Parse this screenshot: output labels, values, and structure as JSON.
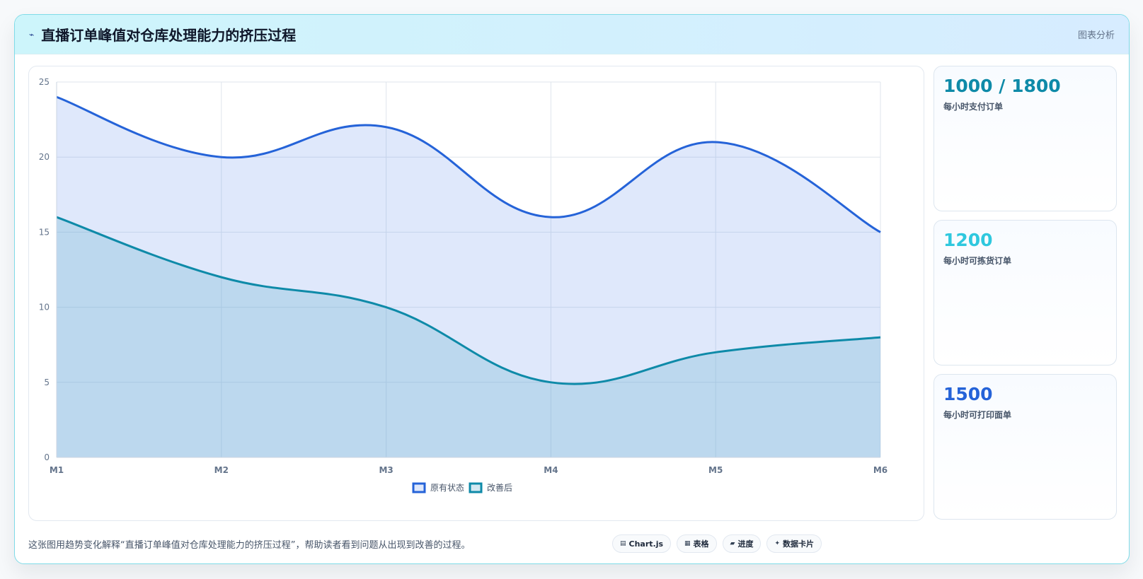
{
  "header": {
    "icon": "pulse-icon",
    "title": "直播订单峰值对仓库处理能力的挤压过程",
    "tag": "图表分析"
  },
  "chart_data": {
    "type": "area",
    "categories": [
      "M1",
      "M2",
      "M3",
      "M4",
      "M5",
      "M6"
    ],
    "ylim": [
      0,
      25
    ],
    "yticks": [
      0,
      5,
      10,
      15,
      20,
      25
    ],
    "grid": true,
    "legend_position": "bottom",
    "series": [
      {
        "name": "原有状态",
        "values": [
          24,
          20,
          22,
          16,
          21,
          15
        ],
        "color": "#2563d8",
        "fill": "rgba(96,140,235,0.20)"
      },
      {
        "name": "改善后",
        "values": [
          16,
          12,
          10,
          5,
          7,
          8
        ],
        "color": "#0e8aa8",
        "fill": "rgba(110,178,210,0.30)"
      }
    ]
  },
  "stats": [
    {
      "value": "1000 / 1800",
      "label": "每小时支付订单",
      "color": "#0e8aa8"
    },
    {
      "value": "1200",
      "label": "每小时可拣货订单",
      "color": "#2fc8de"
    },
    {
      "value": "1500",
      "label": "每小时可打印面单",
      "color": "#2563d8"
    }
  ],
  "footer": {
    "note": "这张图用趋势变化解释“直播订单峰值对仓库处理能力的挤压过程”，帮助读者看到问题从出现到改善的过程。",
    "chips": [
      {
        "icon": "chart-icon",
        "label": "Chart.js"
      },
      {
        "icon": "table-icon",
        "label": "表格"
      },
      {
        "icon": "progress-icon",
        "label": "进度"
      },
      {
        "icon": "card-icon",
        "label": "数据卡片"
      }
    ]
  }
}
